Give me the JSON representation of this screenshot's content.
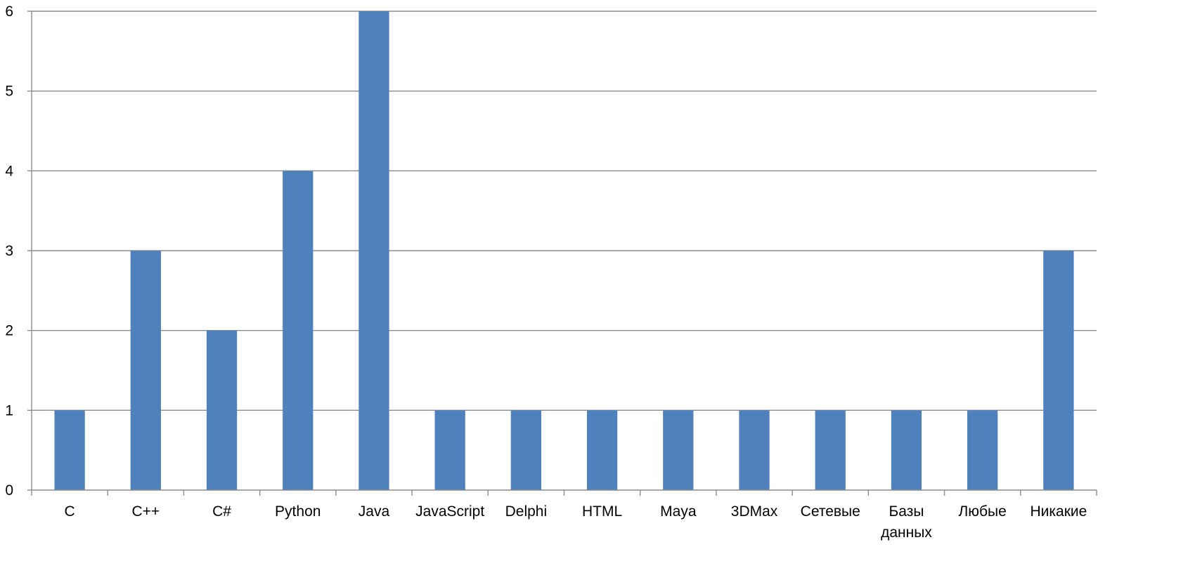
{
  "chart_data": {
    "type": "bar",
    "title": "",
    "xlabel": "",
    "ylabel": "",
    "categories": [
      "C",
      "C++",
      "C#",
      "Python",
      "Java",
      "JavaScript",
      "Delphi",
      "HTML",
      "Maya",
      "3DMax",
      "Сетевые",
      "Базы данных",
      "Любые",
      "Никакие"
    ],
    "values": [
      1,
      3,
      2,
      4,
      6,
      1,
      1,
      1,
      1,
      1,
      1,
      1,
      1,
      3
    ],
    "ylim": [
      0,
      6
    ],
    "yticks": [
      0,
      1,
      2,
      3,
      4,
      5,
      6
    ],
    "grid": true,
    "legend": "none",
    "bar_color": "#4f81bd"
  }
}
